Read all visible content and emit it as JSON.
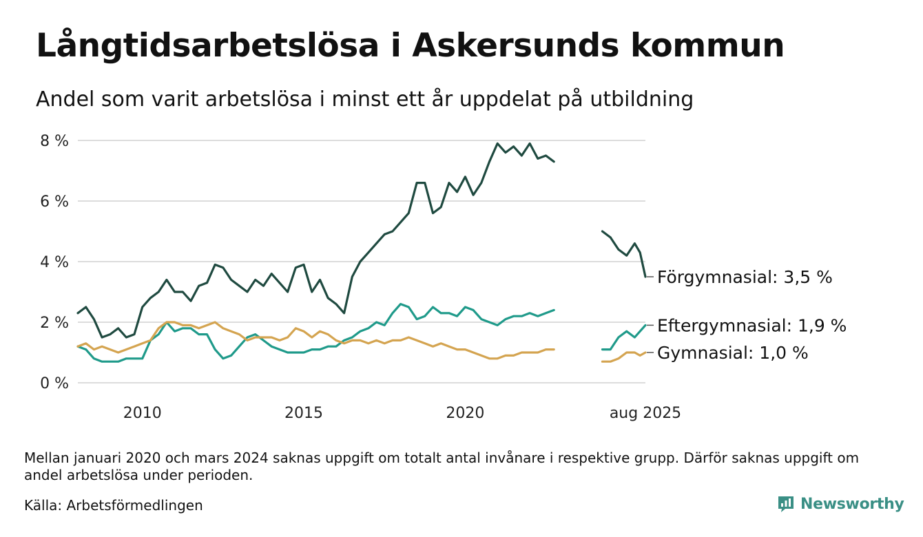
{
  "header": {
    "title": "Långtidsarbetslösa i Askersunds kommun",
    "subtitle": "Andel som varit arbetslösa i minst ett år uppdelat på utbildning"
  },
  "footer": {
    "note": "Mellan januari 2020 och mars 2024 saknas uppgift om totalt antal invånare i respektive grupp. Därför saknas uppgift om andel arbetslösa under perioden.",
    "source": "Källa: Arbetsförmedlingen"
  },
  "brand": {
    "name": "Newsworthy",
    "color": "#3a8f85",
    "icon": "newsworthy-logo-icon"
  },
  "chart_data": {
    "type": "line",
    "title": "Långtidsarbetslösa i Askersunds kommun",
    "subtitle": "Andel som varit arbetslösa i minst ett år uppdelat på utbildning",
    "xlabel": "",
    "ylabel": "",
    "ylim": [
      0,
      8
    ],
    "y_ticks": [
      "0 %",
      "2 %",
      "4 %",
      "6 %",
      "8 %"
    ],
    "x_tick_labels": [
      "2010",
      "2015",
      "2020",
      "aug 2025"
    ],
    "grid": "horizontal",
    "legend": "end-of-line labels (right)",
    "series": [
      {
        "name": "Förgymnasial",
        "end_label": "Förgymnasial: 3,5 %",
        "color": "#1f4a40",
        "segments": [
          [
            [
              "2008-01",
              2.3
            ],
            [
              "2008-04",
              2.5
            ],
            [
              "2008-07",
              2.1
            ],
            [
              "2008-10",
              1.5
            ],
            [
              "2009-01",
              1.6
            ],
            [
              "2009-04",
              1.8
            ],
            [
              "2009-07",
              1.5
            ],
            [
              "2009-10",
              1.6
            ],
            [
              "2010-01",
              2.5
            ],
            [
              "2010-04",
              2.8
            ],
            [
              "2010-07",
              3.0
            ],
            [
              "2010-10",
              3.4
            ],
            [
              "2011-01",
              3.0
            ],
            [
              "2011-04",
              3.0
            ],
            [
              "2011-07",
              2.7
            ],
            [
              "2011-10",
              3.2
            ],
            [
              "2012-01",
              3.3
            ],
            [
              "2012-04",
              3.9
            ],
            [
              "2012-07",
              3.8
            ],
            [
              "2012-10",
              3.4
            ],
            [
              "2013-01",
              3.2
            ],
            [
              "2013-04",
              3.0
            ],
            [
              "2013-07",
              3.4
            ],
            [
              "2013-10",
              3.2
            ],
            [
              "2014-01",
              3.6
            ],
            [
              "2014-04",
              3.3
            ],
            [
              "2014-07",
              3.0
            ],
            [
              "2014-10",
              3.8
            ],
            [
              "2015-01",
              3.9
            ],
            [
              "2015-04",
              3.0
            ],
            [
              "2015-07",
              3.4
            ],
            [
              "2015-10",
              2.8
            ],
            [
              "2016-01",
              2.6
            ],
            [
              "2016-04",
              2.3
            ],
            [
              "2016-07",
              3.5
            ],
            [
              "2016-10",
              4.0
            ],
            [
              "2017-01",
              4.3
            ],
            [
              "2017-04",
              4.6
            ],
            [
              "2017-07",
              4.9
            ],
            [
              "2017-10",
              5.0
            ],
            [
              "2018-01",
              5.3
            ],
            [
              "2018-04",
              5.6
            ],
            [
              "2018-07",
              6.6
            ],
            [
              "2018-10",
              6.6
            ],
            [
              "2019-01",
              5.6
            ],
            [
              "2019-04",
              5.8
            ],
            [
              "2019-07",
              6.6
            ],
            [
              "2019-10",
              6.3
            ],
            [
              "2020-01",
              6.8
            ],
            [
              "2020-04",
              6.2
            ],
            [
              "2020-07",
              6.6
            ],
            [
              "2020-10",
              7.3
            ],
            [
              "2021-01",
              7.9
            ],
            [
              "2021-04",
              7.6
            ],
            [
              "2021-07",
              7.8
            ],
            [
              "2021-10",
              7.5
            ],
            [
              "2022-01",
              7.9
            ],
            [
              "2022-04",
              7.4
            ],
            [
              "2022-07",
              7.5
            ],
            [
              "2022-10",
              7.3
            ]
          ],
          [
            [
              "2024-04",
              5.0
            ],
            [
              "2024-07",
              4.8
            ],
            [
              "2024-10",
              4.4
            ],
            [
              "2025-01",
              4.2
            ],
            [
              "2025-04",
              4.6
            ],
            [
              "2025-06",
              4.3
            ],
            [
              "2025-08",
              3.5
            ]
          ]
        ]
      },
      {
        "name": "Eftergymnasial",
        "end_label": "Eftergymnasial: 1,9 %",
        "color": "#1f9a8a",
        "segments": [
          [
            [
              "2008-01",
              1.2
            ],
            [
              "2008-04",
              1.1
            ],
            [
              "2008-07",
              0.8
            ],
            [
              "2008-10",
              0.7
            ],
            [
              "2009-01",
              0.7
            ],
            [
              "2009-04",
              0.7
            ],
            [
              "2009-07",
              0.8
            ],
            [
              "2009-10",
              0.8
            ],
            [
              "2010-01",
              0.8
            ],
            [
              "2010-04",
              1.4
            ],
            [
              "2010-07",
              1.6
            ],
            [
              "2010-10",
              2.0
            ],
            [
              "2011-01",
              1.7
            ],
            [
              "2011-04",
              1.8
            ],
            [
              "2011-07",
              1.8
            ],
            [
              "2011-10",
              1.6
            ],
            [
              "2012-01",
              1.6
            ],
            [
              "2012-04",
              1.1
            ],
            [
              "2012-07",
              0.8
            ],
            [
              "2012-10",
              0.9
            ],
            [
              "2013-01",
              1.2
            ],
            [
              "2013-04",
              1.5
            ],
            [
              "2013-07",
              1.6
            ],
            [
              "2013-10",
              1.4
            ],
            [
              "2014-01",
              1.2
            ],
            [
              "2014-04",
              1.1
            ],
            [
              "2014-07",
              1.0
            ],
            [
              "2014-10",
              1.0
            ],
            [
              "2015-01",
              1.0
            ],
            [
              "2015-04",
              1.1
            ],
            [
              "2015-07",
              1.1
            ],
            [
              "2015-10",
              1.2
            ],
            [
              "2016-01",
              1.2
            ],
            [
              "2016-04",
              1.4
            ],
            [
              "2016-07",
              1.5
            ],
            [
              "2016-10",
              1.7
            ],
            [
              "2017-01",
              1.8
            ],
            [
              "2017-04",
              2.0
            ],
            [
              "2017-07",
              1.9
            ],
            [
              "2017-10",
              2.3
            ],
            [
              "2018-01",
              2.6
            ],
            [
              "2018-04",
              2.5
            ],
            [
              "2018-07",
              2.1
            ],
            [
              "2018-10",
              2.2
            ],
            [
              "2019-01",
              2.5
            ],
            [
              "2019-04",
              2.3
            ],
            [
              "2019-07",
              2.3
            ],
            [
              "2019-10",
              2.2
            ],
            [
              "2020-01",
              2.5
            ],
            [
              "2020-04",
              2.4
            ],
            [
              "2020-07",
              2.1
            ],
            [
              "2020-10",
              2.0
            ],
            [
              "2021-01",
              1.9
            ],
            [
              "2021-04",
              2.1
            ],
            [
              "2021-07",
              2.2
            ],
            [
              "2021-10",
              2.2
            ],
            [
              "2022-01",
              2.3
            ],
            [
              "2022-04",
              2.2
            ],
            [
              "2022-07",
              2.3
            ],
            [
              "2022-10",
              2.4
            ]
          ],
          [
            [
              "2024-04",
              1.1
            ],
            [
              "2024-07",
              1.1
            ],
            [
              "2024-10",
              1.5
            ],
            [
              "2025-01",
              1.7
            ],
            [
              "2025-04",
              1.5
            ],
            [
              "2025-06",
              1.7
            ],
            [
              "2025-08",
              1.9
            ]
          ]
        ]
      },
      {
        "name": "Gymnasial",
        "end_label": "Gymnasial: 1,0 %",
        "color": "#d4a450",
        "segments": [
          [
            [
              "2008-01",
              1.2
            ],
            [
              "2008-04",
              1.3
            ],
            [
              "2008-07",
              1.1
            ],
            [
              "2008-10",
              1.2
            ],
            [
              "2009-01",
              1.1
            ],
            [
              "2009-04",
              1.0
            ],
            [
              "2009-07",
              1.1
            ],
            [
              "2009-10",
              1.2
            ],
            [
              "2010-01",
              1.3
            ],
            [
              "2010-04",
              1.4
            ],
            [
              "2010-07",
              1.8
            ],
            [
              "2010-10",
              2.0
            ],
            [
              "2011-01",
              2.0
            ],
            [
              "2011-04",
              1.9
            ],
            [
              "2011-07",
              1.9
            ],
            [
              "2011-10",
              1.8
            ],
            [
              "2012-01",
              1.9
            ],
            [
              "2012-04",
              2.0
            ],
            [
              "2012-07",
              1.8
            ],
            [
              "2012-10",
              1.7
            ],
            [
              "2013-01",
              1.6
            ],
            [
              "2013-04",
              1.4
            ],
            [
              "2013-07",
              1.5
            ],
            [
              "2013-10",
              1.5
            ],
            [
              "2014-01",
              1.5
            ],
            [
              "2014-04",
              1.4
            ],
            [
              "2014-07",
              1.5
            ],
            [
              "2014-10",
              1.8
            ],
            [
              "2015-01",
              1.7
            ],
            [
              "2015-04",
              1.5
            ],
            [
              "2015-07",
              1.7
            ],
            [
              "2015-10",
              1.6
            ],
            [
              "2016-01",
              1.4
            ],
            [
              "2016-04",
              1.3
            ],
            [
              "2016-07",
              1.4
            ],
            [
              "2016-10",
              1.4
            ],
            [
              "2017-01",
              1.3
            ],
            [
              "2017-04",
              1.4
            ],
            [
              "2017-07",
              1.3
            ],
            [
              "2017-10",
              1.4
            ],
            [
              "2018-01",
              1.4
            ],
            [
              "2018-04",
              1.5
            ],
            [
              "2018-07",
              1.4
            ],
            [
              "2018-10",
              1.3
            ],
            [
              "2019-01",
              1.2
            ],
            [
              "2019-04",
              1.3
            ],
            [
              "2019-07",
              1.2
            ],
            [
              "2019-10",
              1.1
            ],
            [
              "2020-01",
              1.1
            ],
            [
              "2020-04",
              1.0
            ],
            [
              "2020-07",
              0.9
            ],
            [
              "2020-10",
              0.8
            ],
            [
              "2021-01",
              0.8
            ],
            [
              "2021-04",
              0.9
            ],
            [
              "2021-07",
              0.9
            ],
            [
              "2021-10",
              1.0
            ],
            [
              "2022-01",
              1.0
            ],
            [
              "2022-04",
              1.0
            ],
            [
              "2022-07",
              1.1
            ],
            [
              "2022-10",
              1.1
            ]
          ],
          [
            [
              "2024-04",
              0.7
            ],
            [
              "2024-07",
              0.7
            ],
            [
              "2024-10",
              0.8
            ],
            [
              "2025-01",
              1.0
            ],
            [
              "2025-04",
              1.0
            ],
            [
              "2025-06",
              0.9
            ],
            [
              "2025-08",
              1.0
            ]
          ]
        ]
      }
    ]
  }
}
